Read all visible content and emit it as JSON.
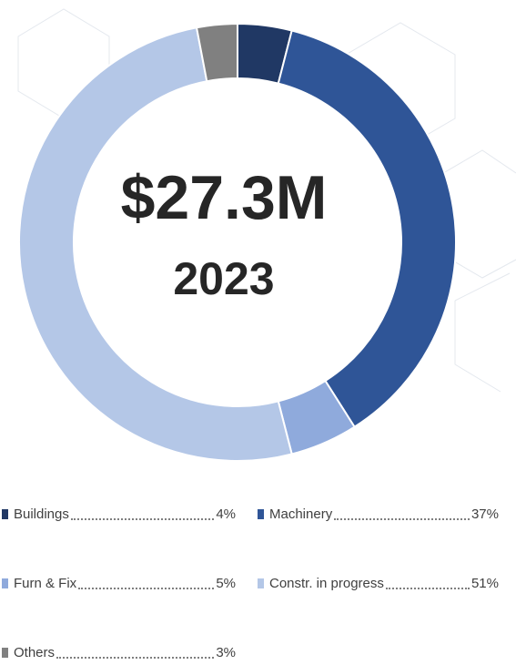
{
  "chart_data": {
    "type": "donut",
    "center_text": "$27.3M",
    "center_subtext": "2023",
    "categories": [
      "Buildings",
      "Machinery",
      "Furn & Fix",
      "Constr. in progress",
      "Others"
    ],
    "values": [
      4,
      37,
      5,
      51,
      3
    ],
    "value_labels": [
      "4%",
      "37%",
      "5%",
      "51%",
      "3%"
    ],
    "colors": [
      "#203864",
      "#2f5597",
      "#8faadc",
      "#b4c7e7",
      "#808080"
    ]
  }
}
